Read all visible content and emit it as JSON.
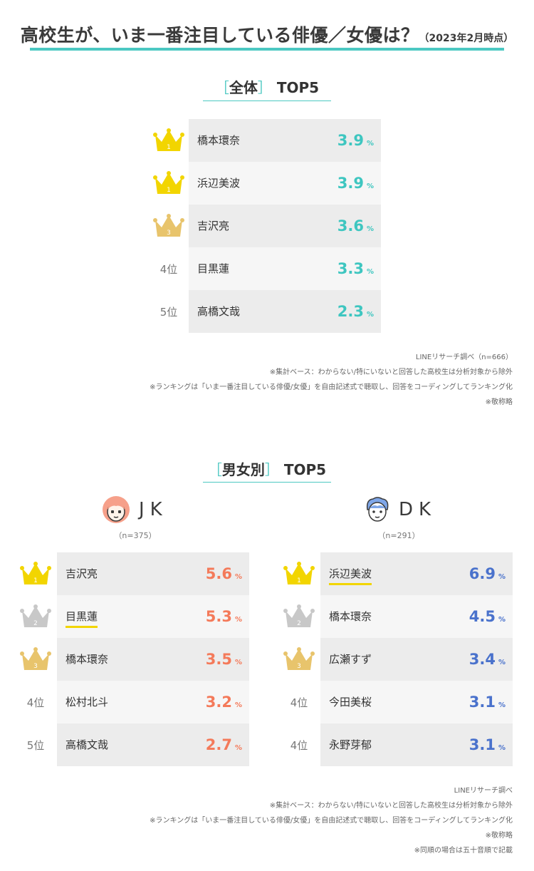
{
  "title": {
    "main": "高校生が、いま一番注目している俳優／女優は？",
    "note": "（2023年2月時点）"
  },
  "colors": {
    "accent": "#4cc8c2",
    "overall_value": "#3ec6c0",
    "jk_value": "#f47a5a",
    "dk_value": "#4a72cc",
    "gold": "#f2d500",
    "silver": "#c8c8c8",
    "bronze": "#e8c46c",
    "row_dark": "#ececec",
    "row_light": "#f6f6f6"
  },
  "overall": {
    "heading_open": "［",
    "heading_word": "全体",
    "heading_close": "］",
    "heading_suffix": "TOP5",
    "footnotes": [
      "LINEリサーチ調べ（n=666）",
      "※集計ベース：わからない/特にいないと回答した高校生は分析対象から除外",
      "※ランキングは「いま一番注目している俳優/女優」を自由記述式で聴取し、回答をコーディングしてランキング化",
      "※敬称略"
    ]
  },
  "gender": {
    "heading_open": "［",
    "heading_word": "男女別",
    "heading_close": "］",
    "heading_suffix": "TOP5",
    "jk": {
      "label": "JK",
      "n": "（n=375）",
      "avatar_icon": "girl-face-icon"
    },
    "dk": {
      "label": "DK",
      "n": "（n=291）",
      "avatar_icon": "boy-face-icon"
    },
    "footnotes": [
      "LINEリサーチ調べ",
      "※集計ベース：わからない/特にいないと回答した高校生は分析対象から除外",
      "※ランキングは「いま一番注目している俳優/女優」を自由記述式で聴取し、回答をコーディングしてランキング化",
      "※敬称略",
      "※同順の場合は五十音順で記載"
    ]
  },
  "chart_data": [
    {
      "type": "table",
      "title": "［全体］TOP5",
      "unit": "%",
      "rows": [
        {
          "rank": "1",
          "rank_icon": "gold-crown-icon",
          "name": "橋本環奈",
          "value": "3.9"
        },
        {
          "rank": "1",
          "rank_icon": "gold-crown-icon",
          "name": "浜辺美波",
          "value": "3.9"
        },
        {
          "rank": "3",
          "rank_icon": "bronze-crown-icon",
          "name": "吉沢亮",
          "value": "3.6"
        },
        {
          "rank": "4位",
          "rank_icon": "",
          "name": "目黒蓮",
          "value": "3.3"
        },
        {
          "rank": "5位",
          "rank_icon": "",
          "name": "高橋文哉",
          "value": "2.3"
        }
      ]
    },
    {
      "type": "table",
      "title": "JK",
      "unit": "%",
      "rows": [
        {
          "rank": "1",
          "rank_icon": "gold-crown-icon",
          "name": "吉沢亮",
          "value": "5.6",
          "underline": false
        },
        {
          "rank": "2",
          "rank_icon": "silver-crown-icon",
          "name": "目黒蓮",
          "value": "5.3",
          "underline": true
        },
        {
          "rank": "3",
          "rank_icon": "bronze-crown-icon",
          "name": "橋本環奈",
          "value": "3.5",
          "underline": false
        },
        {
          "rank": "4位",
          "rank_icon": "",
          "name": "松村北斗",
          "value": "3.2",
          "underline": false
        },
        {
          "rank": "5位",
          "rank_icon": "",
          "name": "高橋文哉",
          "value": "2.7",
          "underline": false
        }
      ]
    },
    {
      "type": "table",
      "title": "DK",
      "unit": "%",
      "rows": [
        {
          "rank": "1",
          "rank_icon": "gold-crown-icon",
          "name": "浜辺美波",
          "value": "6.9",
          "underline": true
        },
        {
          "rank": "2",
          "rank_icon": "silver-crown-icon",
          "name": "橋本環奈",
          "value": "4.5",
          "underline": false
        },
        {
          "rank": "3",
          "rank_icon": "bronze-crown-icon",
          "name": "広瀬すず",
          "value": "3.4",
          "underline": false
        },
        {
          "rank": "4位",
          "rank_icon": "",
          "name": "今田美桜",
          "value": "3.1",
          "underline": false
        },
        {
          "rank": "4位",
          "rank_icon": "",
          "name": "永野芽郁",
          "value": "3.1",
          "underline": false
        }
      ]
    }
  ]
}
